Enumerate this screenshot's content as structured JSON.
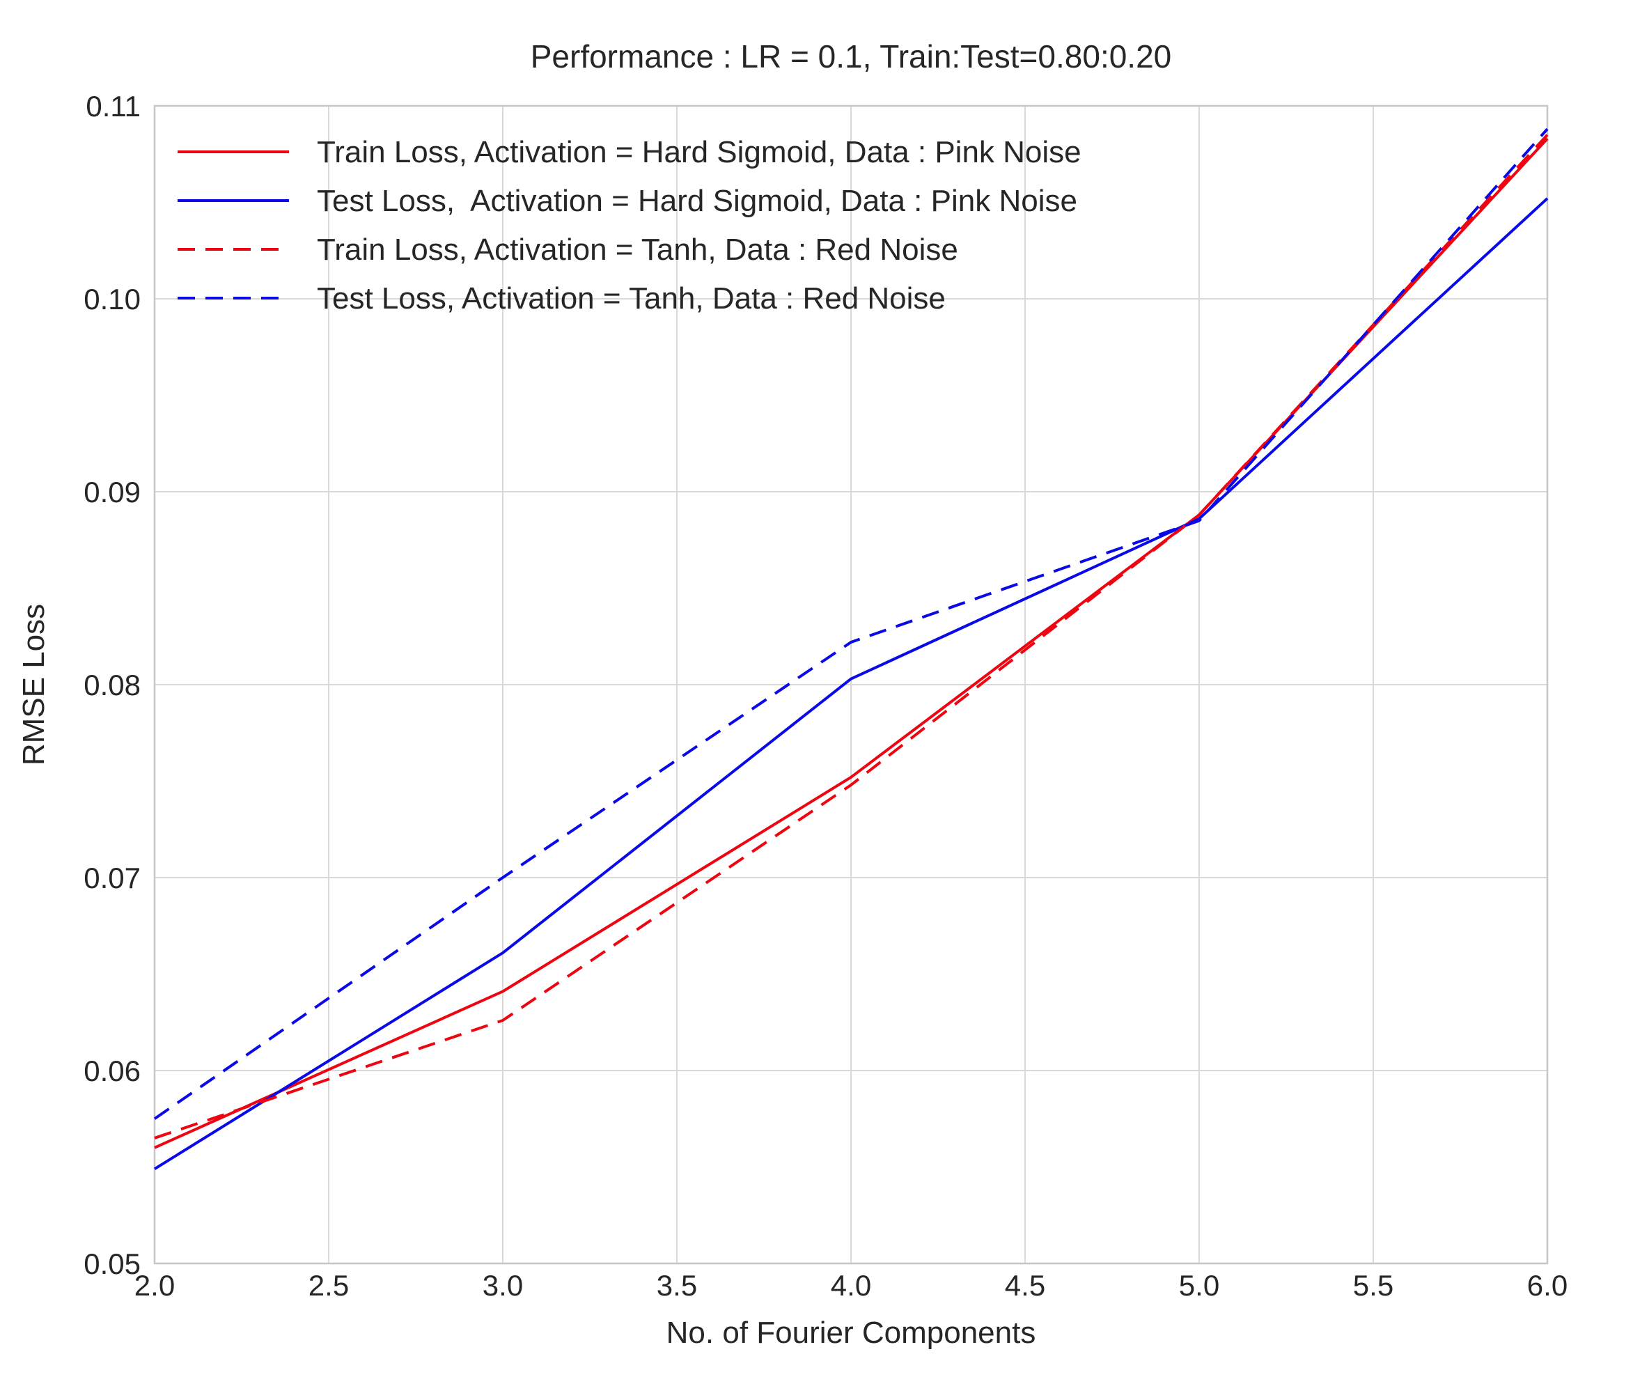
{
  "figure": {
    "title": "Performance : LR = 0.1, Train:Test=0.80:0.20",
    "xlabel": "No. of Fourier Components",
    "ylabel": "RMSE Loss"
  },
  "chart_data": {
    "type": "line",
    "title": "Performance : LR = 0.1, Train:Test=0.80:0.20",
    "xlabel": "No. of Fourier Components",
    "ylabel": "RMSE Loss",
    "grid": true,
    "legend_position": "upper left",
    "xlim": [
      2.0,
      6.0
    ],
    "ylim": [
      0.05,
      0.11
    ],
    "x_tick_labels": [
      "2.0",
      "2.5",
      "3.0",
      "3.5",
      "4.0",
      "4.5",
      "5.0",
      "5.5",
      "6.0"
    ],
    "y_tick_labels": [
      "0.05",
      "0.06",
      "0.07",
      "0.08",
      "0.09",
      "0.10",
      "0.11"
    ],
    "x": [
      2,
      3,
      4,
      5,
      6
    ],
    "series": [
      {
        "name": "Train Loss, Activation = Hard Sigmoid, Data : Pink Noise",
        "style": "solid",
        "color": "#ee0511",
        "values": [
          0.056,
          0.0641,
          0.0752,
          0.0888,
          0.1083
        ]
      },
      {
        "name": "Test Loss,  Activation = Hard Sigmoid, Data : Pink Noise",
        "style": "solid",
        "color": "#0a0ae8",
        "values": [
          0.0549,
          0.0661,
          0.0803,
          0.0886,
          0.1052
        ]
      },
      {
        "name": "Train Loss, Activation = Tanh, Data : Red Noise",
        "style": "dashed",
        "color": "#ee0511",
        "values": [
          0.0565,
          0.0626,
          0.0748,
          0.0888,
          0.1085
        ]
      },
      {
        "name": "Test Loss, Activation = Tanh, Data : Red Noise",
        "style": "dashed",
        "color": "#0a0ae8",
        "values": [
          0.0575,
          0.07,
          0.0822,
          0.0885,
          0.1088
        ]
      }
    ],
    "colors": {
      "red_line": "#ee0511",
      "blue_line": "#0a0ae8",
      "grid": "#d9d9d9",
      "spine": "#c6c6c6",
      "text": "#262626",
      "background": "#ffffff"
    }
  }
}
